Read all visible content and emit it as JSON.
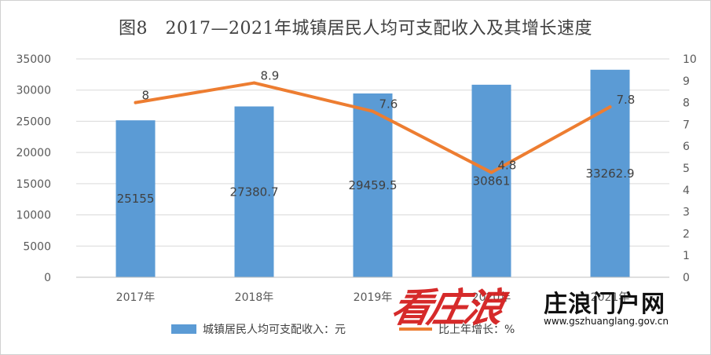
{
  "chart_data": {
    "type": "bar",
    "title": "图8　2017—2021年城镇居民人均可支配收入及其增长速度",
    "categories": [
      "2017年",
      "2018年",
      "2019年",
      "2020年",
      "2021年"
    ],
    "series": [
      {
        "name": "城镇居民人均可支配收入：元",
        "type": "bar",
        "axis": "left",
        "color": "#5b9bd5",
        "values": [
          25155,
          27380.7,
          29459.5,
          30861,
          33262.9
        ],
        "labels": [
          "25155",
          "27380.7",
          "29459.5",
          "30861",
          "33262.9"
        ]
      },
      {
        "name": "比上年增长：%",
        "type": "line",
        "axis": "right",
        "color": "#ed7d31",
        "values": [
          8,
          8.9,
          7.6,
          4.8,
          7.8
        ],
        "labels": [
          "8",
          "8.9",
          "7.6",
          "4.8",
          "7.8"
        ]
      }
    ],
    "y_left": {
      "min": 0,
      "max": 35000,
      "ticks": [
        "0",
        "5000",
        "10000",
        "15000",
        "20000",
        "25000",
        "30000",
        "35000"
      ]
    },
    "y_right": {
      "min": 0,
      "max": 10,
      "ticks": [
        "0",
        "1",
        "2",
        "3",
        "4",
        "5",
        "6",
        "7",
        "8",
        "9",
        "10"
      ]
    },
    "grid": true,
    "legend_position": "bottom"
  },
  "watermark": {
    "logo_text": "看庄浪",
    "site_name": "庄浪门户网",
    "url": "www.gszhuanglang.gov.cn"
  }
}
